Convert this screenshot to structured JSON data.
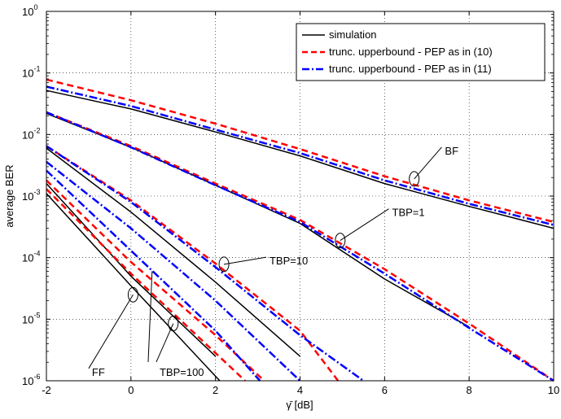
{
  "chart_data": {
    "type": "line",
    "xlabel": "γ̄ [dB]",
    "ylabel": "average BER",
    "xlim": [
      -2,
      10
    ],
    "ylim": [
      1e-06,
      1
    ],
    "yscale": "log",
    "grid": "on",
    "legend_position": "top-right",
    "x_ticks": [
      "-2",
      "0",
      "2",
      "4",
      "6",
      "8",
      "10"
    ],
    "y_ticks": [
      {
        "base": "10",
        "exp": "0"
      },
      {
        "base": "10",
        "exp": "-1"
      },
      {
        "base": "10",
        "exp": "-2"
      },
      {
        "base": "10",
        "exp": "-3"
      },
      {
        "base": "10",
        "exp": "-4"
      },
      {
        "base": "10",
        "exp": "-5"
      },
      {
        "base": "10",
        "exp": "-6"
      }
    ],
    "legend": [
      {
        "label": "simulation",
        "color": "#000000",
        "dash": "solid"
      },
      {
        "label": "trunc. upperbound - PEP as in (10)",
        "color": "#ff0000",
        "dash": "dashed"
      },
      {
        "label": "trunc. upperbound - PEP as in (11)",
        "color": "#0000ff",
        "dash": "dashdot"
      }
    ],
    "series": [
      {
        "group": "BF",
        "style": "simulation",
        "x": [
          -2,
          0,
          2,
          4,
          6,
          8,
          10
        ],
        "y": [
          0.052,
          0.026,
          0.011,
          0.0045,
          0.0016,
          0.00068,
          0.0003
        ]
      },
      {
        "group": "BF",
        "style": "pep10",
        "x": [
          -2,
          0,
          2,
          4,
          6,
          8,
          10
        ],
        "y": [
          0.078,
          0.036,
          0.015,
          0.0058,
          0.0021,
          0.00085,
          0.00038
        ]
      },
      {
        "group": "BF",
        "style": "pep11",
        "x": [
          -2,
          0,
          2,
          4,
          6,
          8,
          10
        ],
        "y": [
          0.06,
          0.029,
          0.012,
          0.005,
          0.0018,
          0.00075,
          0.00034
        ]
      },
      {
        "group": "TBP=1",
        "style": "simulation",
        "x": [
          -2,
          0,
          2,
          4,
          6,
          8
        ],
        "y": [
          0.022,
          0.0062,
          0.0015,
          0.00036,
          4.5e-05,
          7.5e-06
        ]
      },
      {
        "group": "TBP=1",
        "style": "pep10",
        "x": [
          -2,
          0,
          2,
          4,
          6,
          8,
          10
        ],
        "y": [
          0.023,
          0.0065,
          0.0016,
          0.00041,
          6.5e-05,
          8.5e-06,
          1e-06
        ]
      },
      {
        "group": "TBP=1",
        "style": "pep11",
        "x": [
          -2,
          0,
          2,
          4,
          6,
          8,
          10
        ],
        "y": [
          0.023,
          0.0062,
          0.0015,
          0.00038,
          5.5e-05,
          7.2e-06,
          1e-06
        ]
      },
      {
        "group": "TBP=10",
        "style": "simulation",
        "x": [
          -2,
          0,
          2,
          4
        ],
        "y": [
          0.006,
          0.00055,
          4e-05,
          2.5e-06
        ]
      },
      {
        "group": "TBP=10",
        "style": "pep10",
        "x": [
          -2,
          0,
          2,
          4,
          4.9
        ],
        "y": [
          0.0065,
          0.00085,
          8e-05,
          6.5e-06,
          1e-06
        ]
      },
      {
        "group": "TBP=10",
        "style": "pep11",
        "x": [
          -2,
          0,
          2,
          4,
          5.5
        ],
        "y": [
          0.0065,
          0.0008,
          7e-05,
          5.5e-06,
          1e-06
        ]
      },
      {
        "group": "TBP=100",
        "style": "simulation",
        "x": [
          -2,
          0,
          2
        ],
        "y": [
          0.0016,
          5e-05,
          2.5e-06
        ]
      },
      {
        "group": "TBP=100",
        "style": "pep10",
        "x": [
          -2,
          0,
          2,
          3.15
        ],
        "y": [
          0.0018,
          8.5e-05,
          5.5e-06,
          1e-06
        ]
      },
      {
        "group": "TBP=100",
        "style": "pep11",
        "x": [
          -2,
          0,
          2,
          4.0
        ],
        "y": [
          0.0036,
          0.0003,
          2e-05,
          1e-06
        ]
      },
      {
        "group": "FF",
        "style": "simulation",
        "x": [
          -2,
          0,
          2.1
        ],
        "y": [
          0.0011,
          3.5e-05,
          1e-06
        ]
      },
      {
        "group": "FF",
        "style": "pep10",
        "x": [
          -2,
          0,
          2.7
        ],
        "y": [
          0.0013,
          5.5e-05,
          1e-06
        ]
      },
      {
        "group": "FF",
        "style": "pep11",
        "x": [
          -2,
          0,
          2,
          3.05
        ],
        "y": [
          0.0026,
          0.00013,
          6.5e-06,
          1e-06
        ]
      }
    ],
    "annotations": [
      {
        "text": "BF",
        "x": 6.7,
        "y": 0.0019,
        "text_x": 7.35,
        "text_y": 0.0055,
        "arrow": "single"
      },
      {
        "text": "TBP=1",
        "x": 4.95,
        "y": 0.00019,
        "text_x": 6.1,
        "text_y": 0.00055,
        "arrow": "single"
      },
      {
        "text": "TBP=10",
        "x": 2.2,
        "y": 7.8e-05,
        "text_x": 3.2,
        "text_y": 9e-05,
        "arrow": "single"
      },
      {
        "text": "TBP=100",
        "x": 1.0,
        "y": 8.5e-06,
        "text_x": 0.6,
        "text_y": 1.4e-06,
        "arrow": "double"
      },
      {
        "text": "FF",
        "x": 0.05,
        "y": 2.5e-05,
        "text_x": -1.0,
        "text_y": 1.4e-06,
        "arrow": "single"
      }
    ]
  }
}
